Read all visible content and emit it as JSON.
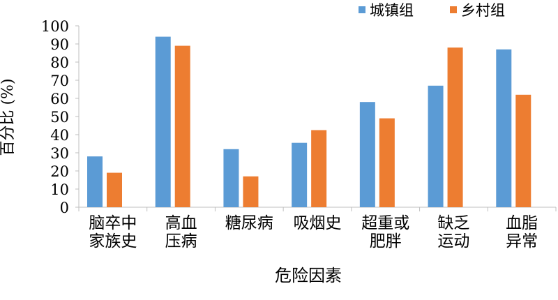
{
  "chart_data": {
    "type": "bar",
    "title": "",
    "xlabel": "危险因素",
    "ylabel": "百分比 (%)",
    "ylim": [
      0,
      100
    ],
    "yticks": [
      0,
      10,
      20,
      30,
      40,
      50,
      60,
      70,
      80,
      90,
      100
    ],
    "grid": false,
    "legend_position": "top-right",
    "categories": [
      [
        "脑卒中",
        "家族史"
      ],
      [
        "高血",
        "压病"
      ],
      [
        "糖尿病"
      ],
      [
        "吸烟史"
      ],
      [
        "超重或",
        "肥胖"
      ],
      [
        "缺乏",
        "运动"
      ],
      [
        "血脂",
        "异常"
      ]
    ],
    "series": [
      {
        "name": "城镇组",
        "color": "#5b9bd5",
        "values": [
          28,
          94,
          32,
          35.5,
          58,
          67,
          87
        ]
      },
      {
        "name": "乡村组",
        "color": "#ed7d31",
        "values": [
          19,
          89,
          17,
          42.5,
          49,
          88,
          62
        ]
      }
    ]
  }
}
